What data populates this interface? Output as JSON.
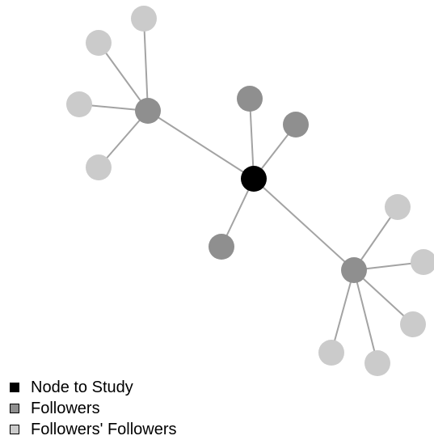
{
  "legend": {
    "items": [
      {
        "key": "study",
        "label": "Node to Study",
        "color": "#000000"
      },
      {
        "key": "follower",
        "label": "Followers",
        "color": "#8f8f8f"
      },
      {
        "key": "follower_of_follower",
        "label": "Followers' Followers",
        "color": "#cbcbcb"
      }
    ]
  },
  "graph": {
    "edge_color": "#a3a3a3",
    "nodes": [
      {
        "id": "center",
        "type": "study"
      },
      {
        "id": "f1",
        "type": "follower"
      },
      {
        "id": "f2",
        "type": "follower"
      },
      {
        "id": "f3",
        "type": "follower"
      },
      {
        "id": "f4",
        "type": "follower"
      },
      {
        "id": "f5",
        "type": "follower"
      },
      {
        "id": "ff1",
        "type": "follower_of_follower"
      },
      {
        "id": "ff2",
        "type": "follower_of_follower"
      },
      {
        "id": "ff3",
        "type": "follower_of_follower"
      },
      {
        "id": "ff4",
        "type": "follower_of_follower"
      },
      {
        "id": "ff5",
        "type": "follower_of_follower"
      },
      {
        "id": "ff6",
        "type": "follower_of_follower"
      },
      {
        "id": "ff7",
        "type": "follower_of_follower"
      },
      {
        "id": "ff8",
        "type": "follower_of_follower"
      },
      {
        "id": "ff9",
        "type": "follower_of_follower"
      }
    ],
    "edges": [
      [
        "center",
        "f1"
      ],
      [
        "center",
        "f2"
      ],
      [
        "center",
        "f3"
      ],
      [
        "center",
        "f4"
      ],
      [
        "center",
        "f5"
      ],
      [
        "f1",
        "ff1"
      ],
      [
        "f1",
        "ff2"
      ],
      [
        "f1",
        "ff3"
      ],
      [
        "f1",
        "ff4"
      ],
      [
        "f5",
        "ff5"
      ],
      [
        "f5",
        "ff6"
      ],
      [
        "f5",
        "ff7"
      ],
      [
        "f5",
        "ff8"
      ],
      [
        "f5",
        "ff9"
      ]
    ]
  }
}
